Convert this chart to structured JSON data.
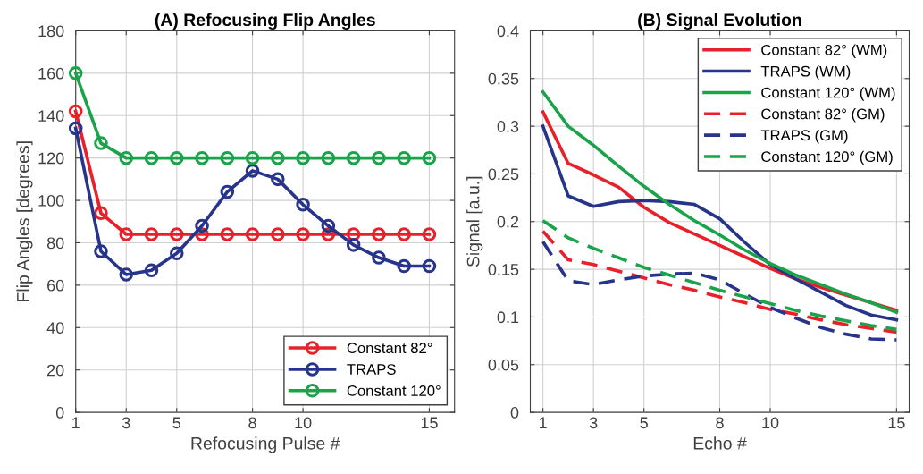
{
  "chart_data": [
    {
      "type": "line",
      "title": "(A) Refocusing Flip Angles",
      "xlabel": "Refocusing Pulse #",
      "ylabel": "Flip Angles [degrees]",
      "x": [
        1,
        2,
        3,
        4,
        5,
        6,
        7,
        8,
        9,
        10,
        11,
        12,
        13,
        14,
        15
      ],
      "xlim": [
        1,
        16
      ],
      "xticks": [
        1,
        3,
        5,
        8,
        10,
        15
      ],
      "ylim": [
        0,
        180
      ],
      "yticks": [
        0,
        20,
        40,
        60,
        80,
        100,
        120,
        140,
        160,
        180
      ],
      "grid": true,
      "legend": "bottom right",
      "marker": "circle",
      "line_style": "solid",
      "series": [
        {
          "name": "Constant 82°",
          "color": "#e8202a",
          "values": [
            142,
            94,
            84,
            84,
            84,
            84,
            84,
            84,
            84,
            84,
            84,
            84,
            84,
            84,
            84
          ]
        },
        {
          "name": "TRAPS",
          "color": "#27348b",
          "values": [
            134,
            76,
            65,
            67,
            75,
            88,
            104,
            114,
            110,
            98,
            88,
            79,
            73,
            69,
            69
          ]
        },
        {
          "name": "Constant 120°",
          "color": "#1aa34a",
          "values": [
            160,
            127,
            120,
            120,
            120,
            120,
            120,
            120,
            120,
            120,
            120,
            120,
            120,
            120,
            120
          ]
        }
      ]
    },
    {
      "type": "line",
      "title": "(B) Signal Evolution",
      "xlabel": "Echo #",
      "ylabel": "Signal [a.u.]",
      "x": [
        1,
        2,
        3,
        4,
        5,
        6,
        7,
        8,
        9,
        10,
        11,
        12,
        13,
        14,
        15
      ],
      "xlim": [
        0.5,
        15.5
      ],
      "xticks": [
        1,
        3,
        5,
        8,
        10,
        15
      ],
      "ylim": [
        0,
        0.4
      ],
      "yticks": [
        0,
        0.05,
        0.1,
        0.15,
        0.2,
        0.25,
        0.3,
        0.35,
        0.4
      ],
      "grid": true,
      "legend": "top right",
      "series": [
        {
          "name": "Constant 82° (WM)",
          "color": "#e8202a",
          "line_style": "solid",
          "values": [
            0.315,
            0.261,
            0.249,
            0.236,
            0.215,
            0.199,
            0.187,
            0.175,
            0.163,
            0.151,
            0.14,
            0.131,
            0.123,
            0.115,
            0.107
          ]
        },
        {
          "name": "TRAPS (WM)",
          "color": "#27348b",
          "line_style": "solid",
          "values": [
            0.3,
            0.227,
            0.216,
            0.221,
            0.222,
            0.221,
            0.218,
            0.203,
            0.178,
            0.155,
            0.14,
            0.126,
            0.112,
            0.102,
            0.097
          ]
        },
        {
          "name": "Constant 120° (WM)",
          "color": "#1aa34a",
          "line_style": "solid",
          "values": [
            0.336,
            0.3,
            0.28,
            0.258,
            0.237,
            0.218,
            0.201,
            0.186,
            0.17,
            0.156,
            0.144,
            0.134,
            0.124,
            0.115,
            0.105
          ]
        },
        {
          "name": "Constant 82° (GM)",
          "color": "#e8202a",
          "line_style": "dashed",
          "values": [
            0.19,
            0.16,
            0.155,
            0.148,
            0.141,
            0.134,
            0.128,
            0.121,
            0.115,
            0.108,
            0.103,
            0.097,
            0.092,
            0.088,
            0.084
          ]
        },
        {
          "name": "TRAPS (GM)",
          "color": "#27348b",
          "line_style": "dashed",
          "values": [
            0.179,
            0.138,
            0.134,
            0.139,
            0.143,
            0.145,
            0.146,
            0.139,
            0.124,
            0.11,
            0.099,
            0.089,
            0.082,
            0.077,
            0.076
          ]
        },
        {
          "name": "Constant 120° (GM)",
          "color": "#1aa34a",
          "line_style": "dashed",
          "values": [
            0.201,
            0.183,
            0.172,
            0.162,
            0.152,
            0.144,
            0.136,
            0.128,
            0.121,
            0.114,
            0.107,
            0.101,
            0.096,
            0.091,
            0.087
          ]
        }
      ]
    }
  ]
}
